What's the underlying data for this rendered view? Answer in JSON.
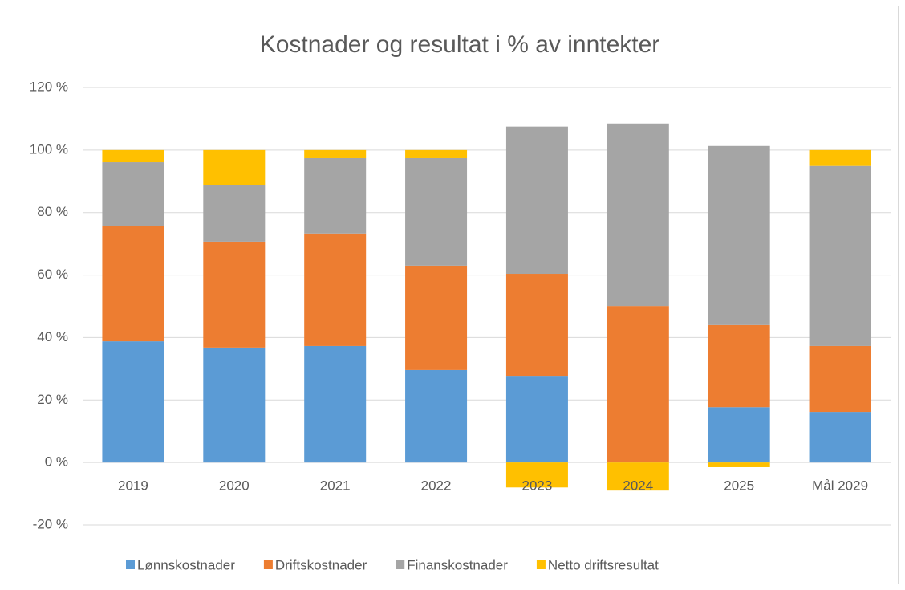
{
  "chart_data": {
    "type": "bar",
    "stacked": true,
    "title": "Kostnader og resultat i % av inntekter",
    "categories": [
      "2019",
      "2020",
      "2021",
      "2022",
      "2023",
      "2024",
      "2025",
      "Mål 2029"
    ],
    "series": [
      {
        "name": "Lønnskostnader",
        "color": "#5b9bd5",
        "values": [
          38.8,
          36.8,
          37.3,
          29.6,
          27.5,
          0,
          17.7,
          16.2
        ]
      },
      {
        "name": "Driftskostnader",
        "color": "#ed7d31",
        "values": [
          36.8,
          33.9,
          36.0,
          33.4,
          32.9,
          50.1,
          26.3,
          21.1
        ]
      },
      {
        "name": "Finanskostnader",
        "color": "#a5a5a5",
        "values": [
          20.5,
          18.2,
          24.1,
          34.4,
          47.1,
          58.4,
          57.3,
          57.6
        ]
      },
      {
        "name": "Netto driftsresultat",
        "color": "#ffc000",
        "values": [
          3.9,
          11.1,
          2.6,
          2.6,
          -8,
          -9,
          -1.5,
          5.1
        ]
      }
    ],
    "ylim": [
      -20,
      120
    ],
    "yticks": [
      {
        "value": -20,
        "label": "-20 %"
      },
      {
        "value": 0,
        "label": "0 %"
      },
      {
        "value": 20,
        "label": "20 %"
      },
      {
        "value": 40,
        "label": "40 %"
      },
      {
        "value": 60,
        "label": "60 %"
      },
      {
        "value": 80,
        "label": "80 %"
      },
      {
        "value": 100,
        "label": "100 %"
      },
      {
        "value": 120,
        "label": "120 %"
      }
    ],
    "grid": true,
    "legend": "bottom"
  }
}
